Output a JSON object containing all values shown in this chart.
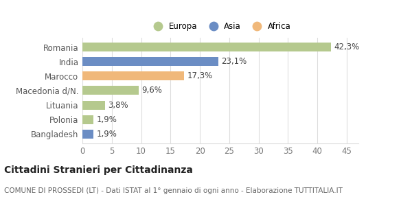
{
  "categories": [
    "Romania",
    "India",
    "Marocco",
    "Macedonia d/N.",
    "Lituania",
    "Polonia",
    "Bangladesh"
  ],
  "values": [
    42.3,
    23.1,
    17.3,
    9.6,
    3.8,
    1.9,
    1.9
  ],
  "labels": [
    "42,3%",
    "23,1%",
    "17,3%",
    "9,6%",
    "3,8%",
    "1,9%",
    "1,9%"
  ],
  "colors": [
    "#b5c98e",
    "#6b8dc4",
    "#f0b87a",
    "#b5c98e",
    "#b5c98e",
    "#b5c98e",
    "#6b8dc4"
  ],
  "legend": [
    {
      "label": "Europa",
      "color": "#b5c98e"
    },
    {
      "label": "Asia",
      "color": "#6b8dc4"
    },
    {
      "label": "Africa",
      "color": "#f0b87a"
    }
  ],
  "xlim": [
    0,
    47
  ],
  "xticks": [
    0,
    5,
    10,
    15,
    20,
    25,
    30,
    35,
    40,
    45
  ],
  "title": "Cittadini Stranieri per Cittadinanza",
  "subtitle": "COMUNE DI PROSSEDI (LT) - Dati ISTAT al 1° gennaio di ogni anno - Elaborazione TUTTITALIA.IT",
  "background_color": "#ffffff",
  "bar_height": 0.62,
  "grid_color": "#dddddd",
  "label_fontsize": 8.5,
  "tick_fontsize": 8.5,
  "title_fontsize": 10,
  "subtitle_fontsize": 7.5
}
